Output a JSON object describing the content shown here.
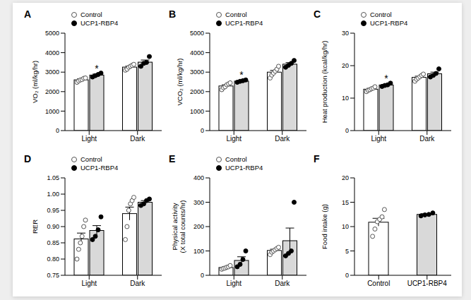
{
  "chart_data": [
    {
      "type": "bar",
      "title": "A",
      "y_label": "VO₂ (ml/kg/hr)",
      "categories": [
        "Light",
        "Dark"
      ],
      "legend": "upper left",
      "series": [
        {
          "name": "Control",
          "color": "#ffffff",
          "values": [
            2605,
            3258
          ],
          "errors": [
            50,
            50
          ],
          "points": [
            [
              2480,
              2550,
              2600,
              2620,
              2680,
              2700
            ],
            [
              3100,
              3150,
              3250,
              3300,
              3350,
              3400
            ]
          ]
        },
        {
          "name": "UCP1-RBP4",
          "color": "#d9d9d9",
          "values": [
            2850,
            3512
          ],
          "errors": [
            50,
            110
          ],
          "points": [
            [
              2750,
              2820,
              2880,
              2950
            ],
            [
              3300,
              3450,
              3500,
              3800
            ]
          ]
        }
      ],
      "ylim": [
        0,
        5000
      ],
      "yticks": [
        0,
        1000,
        2000,
        3000,
        4000,
        5000
      ],
      "annotations": [
        {
          "text": "*",
          "series": "UCP1-RBP4",
          "category": "Light"
        }
      ]
    },
    {
      "type": "bar",
      "title": "B",
      "y_label": "VCO₂ (ml/kg/hr)",
      "categories": [
        "Light",
        "Dark"
      ],
      "legend": "upper left",
      "series": [
        {
          "name": "Control",
          "color": "#ffffff",
          "values": [
            2290,
            3000
          ],
          "errors": [
            60,
            90
          ],
          "points": [
            [
              2100,
              2200,
              2250,
              2350,
              2400,
              2450
            ],
            [
              2700,
              2850,
              2950,
              3050,
              3150,
              3300
            ]
          ]
        },
        {
          "name": "UCP1-RBP4",
          "color": "#d9d9d9",
          "values": [
            2540,
            3410
          ],
          "errors": [
            30,
            80
          ],
          "points": [
            [
              2480,
              2530,
              2560,
              2600
            ],
            [
              3250,
              3350,
              3450,
              3600
            ]
          ]
        }
      ],
      "ylim": [
        0,
        5000
      ],
      "yticks": [
        0,
        1000,
        2000,
        3000,
        4000,
        5000
      ],
      "annotations": [
        {
          "text": "*",
          "series": "UCP1-RBP4",
          "category": "Light"
        }
      ]
    },
    {
      "type": "bar",
      "title": "C",
      "y_label": "Heat production (kcal/kg/hr)",
      "categories": [
        "Light",
        "Dark"
      ],
      "legend": "upper left",
      "series": [
        {
          "name": "Control",
          "color": "#ffffff",
          "values": [
            12.75,
            16.4
          ],
          "errors": [
            0.25,
            0.35
          ],
          "points": [
            [
              12.0,
              12.4,
              12.6,
              12.9,
              13.1,
              13.5
            ],
            [
              15.2,
              15.8,
              16.2,
              16.6,
              17.0,
              17.4
            ]
          ]
        },
        {
          "name": "UCP1-RBP4",
          "color": "#d9d9d9",
          "values": [
            14.05,
            17.5
          ],
          "errors": [
            0.2,
            0.5
          ],
          "points": [
            [
              13.6,
              13.9,
              14.1,
              14.6
            ],
            [
              16.5,
              17.0,
              17.6,
              19.0
            ]
          ]
        }
      ],
      "ylim": [
        0,
        30
      ],
      "yticks": [
        0,
        10,
        20,
        30
      ],
      "annotations": [
        {
          "text": "*",
          "series": "UCP1-RBP4",
          "category": "Light"
        }
      ]
    },
    {
      "type": "bar",
      "title": "D",
      "y_label": "RER",
      "categories": [
        "Light",
        "Dark"
      ],
      "legend": "upper left",
      "series": [
        {
          "name": "Control",
          "color": "#ffffff",
          "values": [
            0.862,
            0.94
          ],
          "errors": [
            0.018,
            0.02
          ],
          "points": [
            [
              0.8,
              0.83,
              0.85,
              0.87,
              0.9,
              0.92
            ],
            [
              0.86,
              0.9,
              0.95,
              0.97,
              0.98,
              0.99
            ]
          ]
        },
        {
          "name": "UCP1-RBP4",
          "color": "#d9d9d9",
          "values": [
            0.888,
            0.975
          ],
          "errors": [
            0.015,
            0.005
          ],
          "points": [
            [
              0.86,
              0.87,
              0.89,
              0.93
            ],
            [
              0.965,
              0.97,
              0.98,
              0.985
            ]
          ]
        }
      ],
      "ylim": [
        0.75,
        1.05
      ],
      "yticks": [
        0.75,
        {
          "value": 0.8,
          "label": "0.80"
        },
        0.85,
        {
          "value": 0.9,
          "label": "0.90"
        },
        0.95,
        {
          "value": 1,
          "label": "1.00"
        },
        1.05
      ]
    },
    {
      "type": "bar",
      "title": "E",
      "y_label": "Physical activity\n(X total counts/hr)",
      "categories": [
        "Light",
        "Dark"
      ],
      "legend": "upper left",
      "series": [
        {
          "name": "Control",
          "color": "#ffffff",
          "values": [
            32,
            102
          ],
          "errors": [
            3,
            5
          ],
          "points": [
            [
              25,
              28,
              30,
              33,
              35,
              40
            ],
            [
              85,
              95,
              100,
              105,
              110,
              115
            ]
          ]
        },
        {
          "name": "UCP1-RBP4",
          "color": "#d9d9d9",
          "values": [
            61,
            142
          ],
          "errors": [
            15,
            52
          ],
          "points": [
            [
              35,
              45,
              65,
              100
            ],
            [
              80,
              90,
              100,
              300
            ]
          ]
        }
      ],
      "ylim": [
        0,
        400
      ],
      "yticks": [
        0,
        100,
        200,
        300,
        400
      ]
    },
    {
      "type": "bar",
      "title": "F",
      "y_label": "Food intake (g)",
      "categories": [
        "Control",
        "UCP1-RBP4"
      ],
      "series": [
        {
          "colors": [
            "#ffffff",
            "#d9d9d9"
          ],
          "values": [
            10.9,
            12.5
          ],
          "errors": [
            0.8,
            0.15
          ],
          "points": [
            [
              8,
              9.5,
              11,
              11.5,
              12,
              13.5
            ],
            [
              12.2,
              12.4,
              12.5,
              12.8
            ]
          ]
        }
      ],
      "ylim": [
        0,
        20
      ],
      "yticks": [
        0,
        5,
        10,
        15,
        20
      ]
    }
  ]
}
